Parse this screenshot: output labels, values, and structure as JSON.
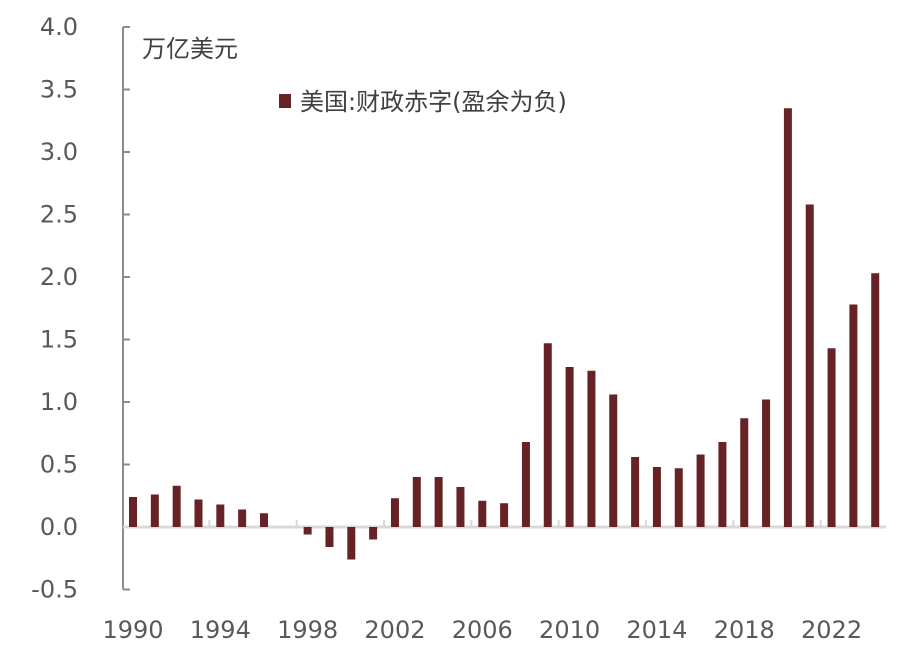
{
  "chart_data": {
    "type": "bar",
    "unit_label": "万亿美元",
    "legend": [
      {
        "label": "美国:财政赤字(盈余为负)",
        "color": "#662224"
      }
    ],
    "legend_position": "top",
    "categories": [
      1990,
      1991,
      1992,
      1993,
      1994,
      1995,
      1996,
      1997,
      1998,
      1999,
      2000,
      2001,
      2002,
      2003,
      2004,
      2005,
      2006,
      2007,
      2008,
      2009,
      2010,
      2011,
      2012,
      2013,
      2014,
      2015,
      2016,
      2017,
      2018,
      2019,
      2020,
      2021,
      2022,
      2023,
      2024
    ],
    "values": [
      0.24,
      0.26,
      0.33,
      0.22,
      0.18,
      0.14,
      0.11,
      0.0,
      -0.06,
      -0.16,
      -0.26,
      -0.1,
      0.23,
      0.4,
      0.4,
      0.32,
      0.21,
      0.19,
      0.68,
      1.47,
      1.28,
      1.25,
      1.06,
      0.56,
      0.48,
      0.47,
      0.58,
      0.68,
      0.87,
      1.02,
      3.35,
      2.58,
      1.43,
      1.78,
      2.03
    ],
    "ylim": [
      -0.5,
      4.0
    ],
    "yticks": [
      "-0.5",
      "0.0",
      "0.5",
      "1.0",
      "1.5",
      "2.0",
      "2.5",
      "3.0",
      "3.5",
      "4.0"
    ],
    "xtick_labels": [
      "1990",
      "1994",
      "1998",
      "2002",
      "2006",
      "2010",
      "2014",
      "2018",
      "2022"
    ],
    "grid": false,
    "colors": {
      "bar": "#662224",
      "axis": "#8c8c8c",
      "zero_line": "#d9d9d9"
    }
  }
}
